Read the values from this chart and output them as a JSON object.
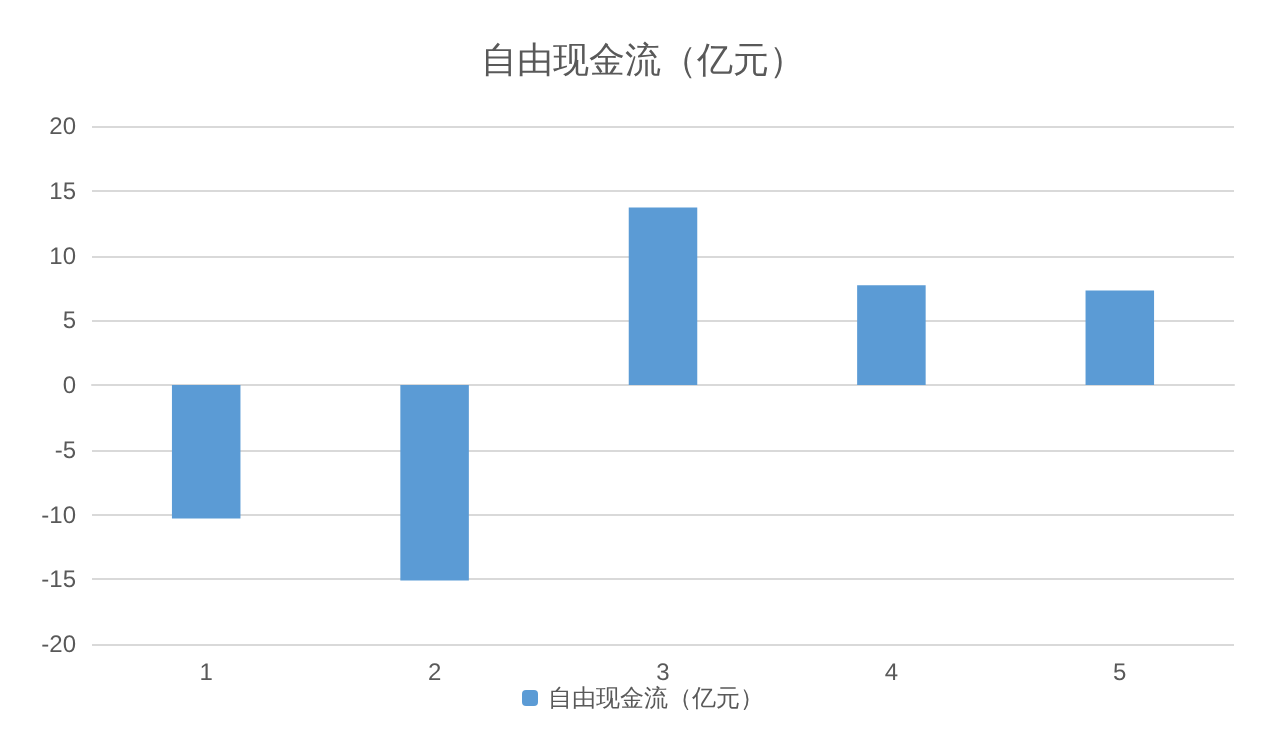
{
  "chart_data": {
    "type": "bar",
    "title": "自由现金流（亿元）",
    "categories": [
      "1",
      "2",
      "3",
      "4",
      "5"
    ],
    "series": [
      {
        "name": "自由现金流（亿元）",
        "color": "#5b9bd5",
        "values": [
          -10.3,
          -15.1,
          13.7,
          7.7,
          7.3
        ]
      }
    ],
    "ylim": [
      -20,
      20
    ],
    "yticks": [
      -20,
      -15,
      -10,
      -5,
      0,
      5,
      10,
      15,
      20
    ],
    "grid": "y",
    "legend": "bottom"
  }
}
